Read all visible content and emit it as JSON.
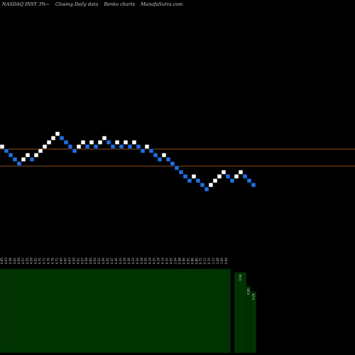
{
  "header": {
    "ticker": "NASDAQ INSY 3%~",
    "chart_kind": "Closing Daily data",
    "chart_style": "Renko charts",
    "site": "MunafaSutra.com"
  },
  "colors": {
    "background": "#000000",
    "up_brick": "#ffffff",
    "down_brick": "#1f6fe0",
    "level_line": "#c8641e",
    "volume_bar": "#003300",
    "tick_text": "#cfcfcf"
  },
  "chart_data": {
    "type": "renko",
    "title": "NASDAQ INSY 3%~ Closing Daily data Renko charts MunafaSutra.com",
    "bricks": [
      {
        "row": 0,
        "dir": "up"
      },
      {
        "row": -1,
        "dir": "down"
      },
      {
        "row": -2,
        "dir": "down"
      },
      {
        "row": -3,
        "dir": "down"
      },
      {
        "row": -4,
        "dir": "down"
      },
      {
        "row": -3,
        "dir": "up"
      },
      {
        "row": -2,
        "dir": "up"
      },
      {
        "row": -3,
        "dir": "down"
      },
      {
        "row": -2,
        "dir": "up"
      },
      {
        "row": -1,
        "dir": "up"
      },
      {
        "row": 0,
        "dir": "up"
      },
      {
        "row": 1,
        "dir": "up"
      },
      {
        "row": 2,
        "dir": "up"
      },
      {
        "row": 3,
        "dir": "up"
      },
      {
        "row": 2,
        "dir": "down"
      },
      {
        "row": 1,
        "dir": "down"
      },
      {
        "row": 0,
        "dir": "down"
      },
      {
        "row": -1,
        "dir": "down"
      },
      {
        "row": 0,
        "dir": "up"
      },
      {
        "row": 1,
        "dir": "up"
      },
      {
        "row": 0,
        "dir": "down"
      },
      {
        "row": 1,
        "dir": "up"
      },
      {
        "row": 0,
        "dir": "down"
      },
      {
        "row": 1,
        "dir": "up"
      },
      {
        "row": 2,
        "dir": "up"
      },
      {
        "row": 1,
        "dir": "down"
      },
      {
        "row": 0,
        "dir": "down"
      },
      {
        "row": 1,
        "dir": "up"
      },
      {
        "row": 0,
        "dir": "down"
      },
      {
        "row": 1,
        "dir": "up"
      },
      {
        "row": 0,
        "dir": "down"
      },
      {
        "row": 1,
        "dir": "up"
      },
      {
        "row": 0,
        "dir": "down"
      },
      {
        "row": -1,
        "dir": "down"
      },
      {
        "row": 0,
        "dir": "up"
      },
      {
        "row": -1,
        "dir": "down"
      },
      {
        "row": -2,
        "dir": "down"
      },
      {
        "row": -3,
        "dir": "down"
      },
      {
        "row": -2,
        "dir": "up"
      },
      {
        "row": -3,
        "dir": "down"
      },
      {
        "row": -4,
        "dir": "down"
      },
      {
        "row": -5,
        "dir": "down"
      },
      {
        "row": -6,
        "dir": "down"
      },
      {
        "row": -7,
        "dir": "down"
      },
      {
        "row": -8,
        "dir": "down"
      },
      {
        "row": -7,
        "dir": "up"
      },
      {
        "row": -8,
        "dir": "down"
      },
      {
        "row": -9,
        "dir": "down"
      },
      {
        "row": -10,
        "dir": "down"
      },
      {
        "row": -9,
        "dir": "up"
      },
      {
        "row": -8,
        "dir": "up"
      },
      {
        "row": -7,
        "dir": "up"
      },
      {
        "row": -6,
        "dir": "up"
      },
      {
        "row": -7,
        "dir": "down"
      },
      {
        "row": -8,
        "dir": "down"
      },
      {
        "row": -7,
        "dir": "up"
      },
      {
        "row": -6,
        "dir": "up"
      },
      {
        "row": -7,
        "dir": "down"
      },
      {
        "row": -8,
        "dir": "down"
      },
      {
        "row": -9,
        "dir": "down"
      }
    ],
    "level_lines": [
      "upper",
      "lower"
    ],
    "x_ticks": [
      "4.65",
      "4.63",
      "4.58",
      "4.62",
      "4.59",
      "4.57",
      "4.55",
      "4.59",
      "4.62",
      "4.70",
      "4.72",
      "4.76",
      "4.79",
      "4.72",
      "4.65",
      "4.60",
      "4.63",
      "4.59",
      "4.61",
      "4.57",
      "4.58",
      "4.60",
      "4.54",
      "4.52",
      "4.56",
      "4.50",
      "4.47",
      "4.45",
      "4.43",
      "4.39",
      "4.36",
      "4.33",
      "4.30",
      "4.28",
      "4.26",
      "4.24",
      "4.20",
      "4.18",
      "4.14",
      "4.10",
      "4.05",
      "1.04",
      "0.98",
      "0.95",
      "0.91",
      "0.86",
      "0.80",
      "0.75",
      "0.72",
      "0.70",
      "1.12",
      "1.08",
      "1.00",
      "0.94"
    ],
    "volume": [
      {
        "label": "",
        "value": 0.97
      },
      {
        "label": "",
        "value": 0.0
      },
      {
        "label": "0.94",
        "value": 0.93
      },
      {
        "label": "0.90",
        "value": 0.77
      },
      {
        "label": "0.29",
        "value": 0.71
      }
    ]
  }
}
